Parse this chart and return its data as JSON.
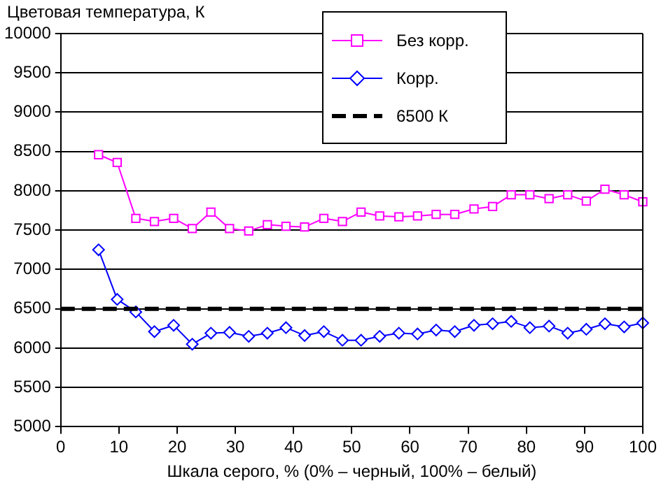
{
  "chart_data": {
    "type": "line",
    "ylabel": "Цветовая температура, К",
    "xlabel": "Шкала серого, % (0% – черный, 100% – белый)",
    "x": [
      6.5,
      9.7,
      12.9,
      16.1,
      19.4,
      22.6,
      25.8,
      29.0,
      32.3,
      35.5,
      38.7,
      41.9,
      45.2,
      48.4,
      51.6,
      54.8,
      58.1,
      61.3,
      64.5,
      67.7,
      71.0,
      74.2,
      77.4,
      80.6,
      83.9,
      87.1,
      90.3,
      93.5,
      96.8,
      100
    ],
    "series": [
      {
        "name": "Без корр.",
        "color": "#ff00ff",
        "marker": "square",
        "values": [
          8460,
          8360,
          7650,
          7610,
          7650,
          7520,
          7730,
          7520,
          7490,
          7570,
          7550,
          7540,
          7650,
          7610,
          7730,
          7680,
          7670,
          7680,
          7700,
          7700,
          7770,
          7800,
          7950,
          7950,
          7900,
          7950,
          7870,
          8020,
          7950,
          7860
        ]
      },
      {
        "name": "Корр.",
        "color": "#0000ff",
        "marker": "diamond",
        "values": [
          7250,
          6620,
          6460,
          6210,
          6290,
          6050,
          6190,
          6200,
          6150,
          6190,
          6260,
          6160,
          6210,
          6100,
          6100,
          6150,
          6190,
          6180,
          6230,
          6210,
          6290,
          6310,
          6340,
          6260,
          6280,
          6190,
          6240,
          6310,
          6270,
          6320
        ]
      }
    ],
    "ref_lines": [
      {
        "axis": "y",
        "value": 6500,
        "label": "6500 К",
        "color": "#000000",
        "line_style": "dashed"
      }
    ],
    "xlim": [
      0,
      100
    ],
    "xticks": [
      0,
      10,
      20,
      30,
      40,
      50,
      60,
      70,
      80,
      90,
      100
    ],
    "ylim": [
      5000,
      10000
    ],
    "yticks": [
      5000,
      5500,
      6000,
      6500,
      7000,
      7500,
      8000,
      8500,
      9000,
      9500,
      10000
    ],
    "grid": "y",
    "legend": "top right",
    "line_style": "solid"
  }
}
